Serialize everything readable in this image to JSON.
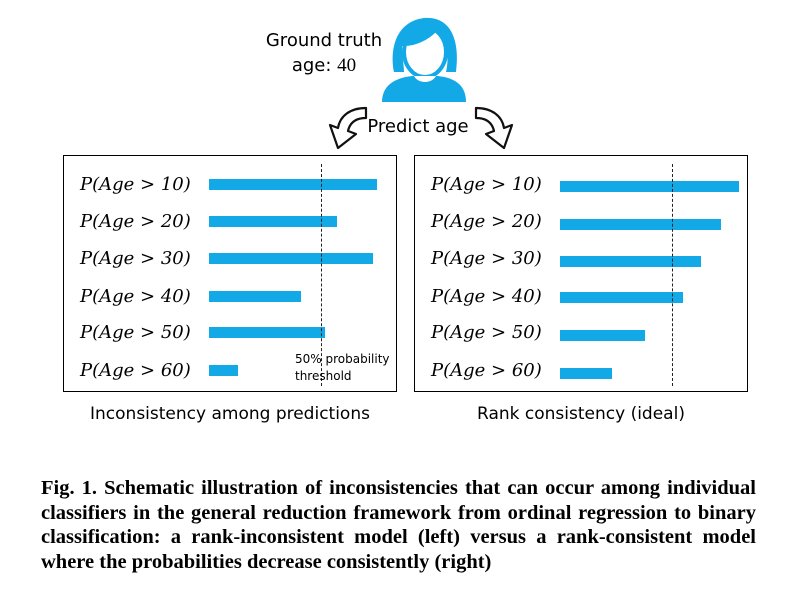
{
  "header": {
    "ground_truth_label": "Ground truth",
    "age_label": "age:",
    "age_value": "40",
    "action_label": "Predict age"
  },
  "panels": {
    "left": {
      "rows": [
        {
          "label": "P(Age > 10)",
          "probability": 0.75
        },
        {
          "label": "P(Age > 20)",
          "probability": 0.57
        },
        {
          "label": "P(Age > 30)",
          "probability": 0.73
        },
        {
          "label": "P(Age > 40)",
          "probability": 0.41
        },
        {
          "label": "P(Age > 50)",
          "probability": 0.52
        },
        {
          "label": "P(Age > 60)",
          "probability": 0.13
        }
      ],
      "threshold_note_line1": "50% probability",
      "threshold_note_line2": "threshold",
      "caption": "Inconsistency among predictions"
    },
    "right": {
      "rows": [
        {
          "label": "P(Age > 10)",
          "probability": 0.8
        },
        {
          "label": "P(Age > 20)",
          "probability": 0.72
        },
        {
          "label": "P(Age > 30)",
          "probability": 0.63
        },
        {
          "label": "P(Age > 40)",
          "probability": 0.55
        },
        {
          "label": "P(Age > 50)",
          "probability": 0.38
        },
        {
          "label": "P(Age > 60)",
          "probability": 0.23
        }
      ],
      "caption": "Rank consistency (ideal)"
    },
    "threshold": 0.5
  },
  "figure_caption": "Fig. 1. Schematic illustration of inconsistencies that can occur among individual classifiers in the general reduction framework from ordinal regression to binary classification: a rank-inconsistent model (left) versus a rank-consistent model where the probabilities decrease consistently (right)",
  "colors": {
    "bar": "#13a9e6",
    "person": "#13a9e6"
  },
  "icons": {
    "person": "person-icon",
    "arrows": "curved-arrow-icon"
  }
}
